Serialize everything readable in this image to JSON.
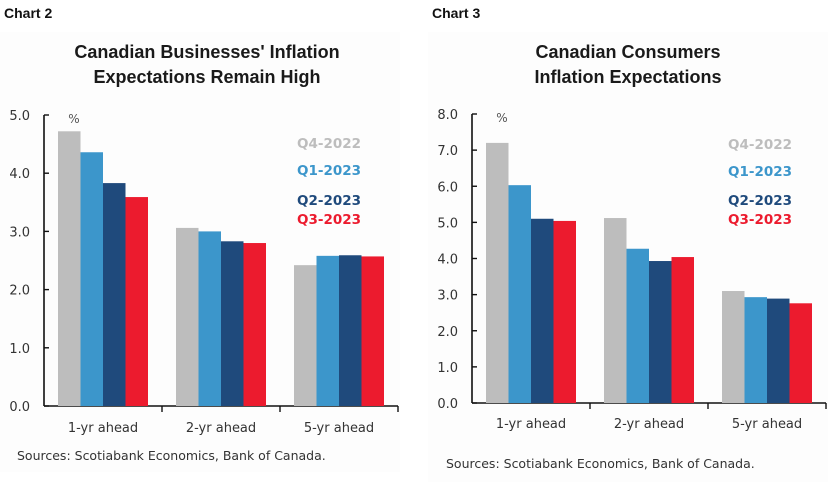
{
  "colors": {
    "Q4-2022": "#bdbdbd",
    "Q1-2023": "#3c96cb",
    "Q2-2023": "#1f4a7c",
    "Q3-2023": "#ec1b2e",
    "axis": "#111111"
  },
  "chart_data": [
    {
      "chart_label": "Chart 2",
      "type": "bar",
      "title": "Canadian Businesses' Inflation Expectations Remain High",
      "title_lines": [
        "Canadian Businesses' Inflation",
        "Expectations Remain High"
      ],
      "xlabel": "",
      "ylabel": "%",
      "ylim": [
        0,
        5
      ],
      "yticks": [
        0,
        1,
        2,
        3,
        4,
        5
      ],
      "ytick_labels": [
        "0.0",
        "1.0",
        "2.0",
        "3.0",
        "4.0",
        "5.0"
      ],
      "grid": false,
      "legend_position": "top-right",
      "categories": [
        "1-yr ahead",
        "2-yr ahead",
        "5-yr ahead"
      ],
      "series": [
        {
          "name": "Q4-2022",
          "values": [
            4.72,
            3.06,
            2.42
          ]
        },
        {
          "name": "Q1-2023",
          "values": [
            4.36,
            3.0,
            2.58
          ]
        },
        {
          "name": "Q2-2023",
          "values": [
            3.83,
            2.83,
            2.59
          ]
        },
        {
          "name": "Q3-2023",
          "values": [
            3.59,
            2.8,
            2.57
          ]
        }
      ],
      "source": "Sources: Scotiabank Economics, Bank of Canada."
    },
    {
      "chart_label": "Chart 3",
      "type": "bar",
      "title": "Canadian Consumers Inflation Expectations",
      "title_lines": [
        "Canadian Consumers",
        "Inflation Expectations"
      ],
      "xlabel": "",
      "ylabel": "%",
      "ylim": [
        0,
        8
      ],
      "yticks": [
        0,
        1,
        2,
        3,
        4,
        5,
        6,
        7,
        8
      ],
      "ytick_labels": [
        "0.0",
        "1.0",
        "2.0",
        "3.0",
        "4.0",
        "5.0",
        "6.0",
        "7.0",
        "8.0"
      ],
      "grid": false,
      "legend_position": "top-right",
      "categories": [
        "1-yr ahead",
        "2-yr ahead",
        "5-yr ahead"
      ],
      "series": [
        {
          "name": "Q4-2022",
          "values": [
            7.2,
            5.12,
            3.1
          ]
        },
        {
          "name": "Q1-2023",
          "values": [
            6.03,
            4.27,
            2.93
          ]
        },
        {
          "name": "Q2-2023",
          "values": [
            5.1,
            3.93,
            2.89
          ]
        },
        {
          "name": "Q3-2023",
          "values": [
            5.04,
            4.04,
            2.76
          ]
        }
      ],
      "source": "Sources: Scotiabank Economics, Bank of Canada."
    }
  ]
}
